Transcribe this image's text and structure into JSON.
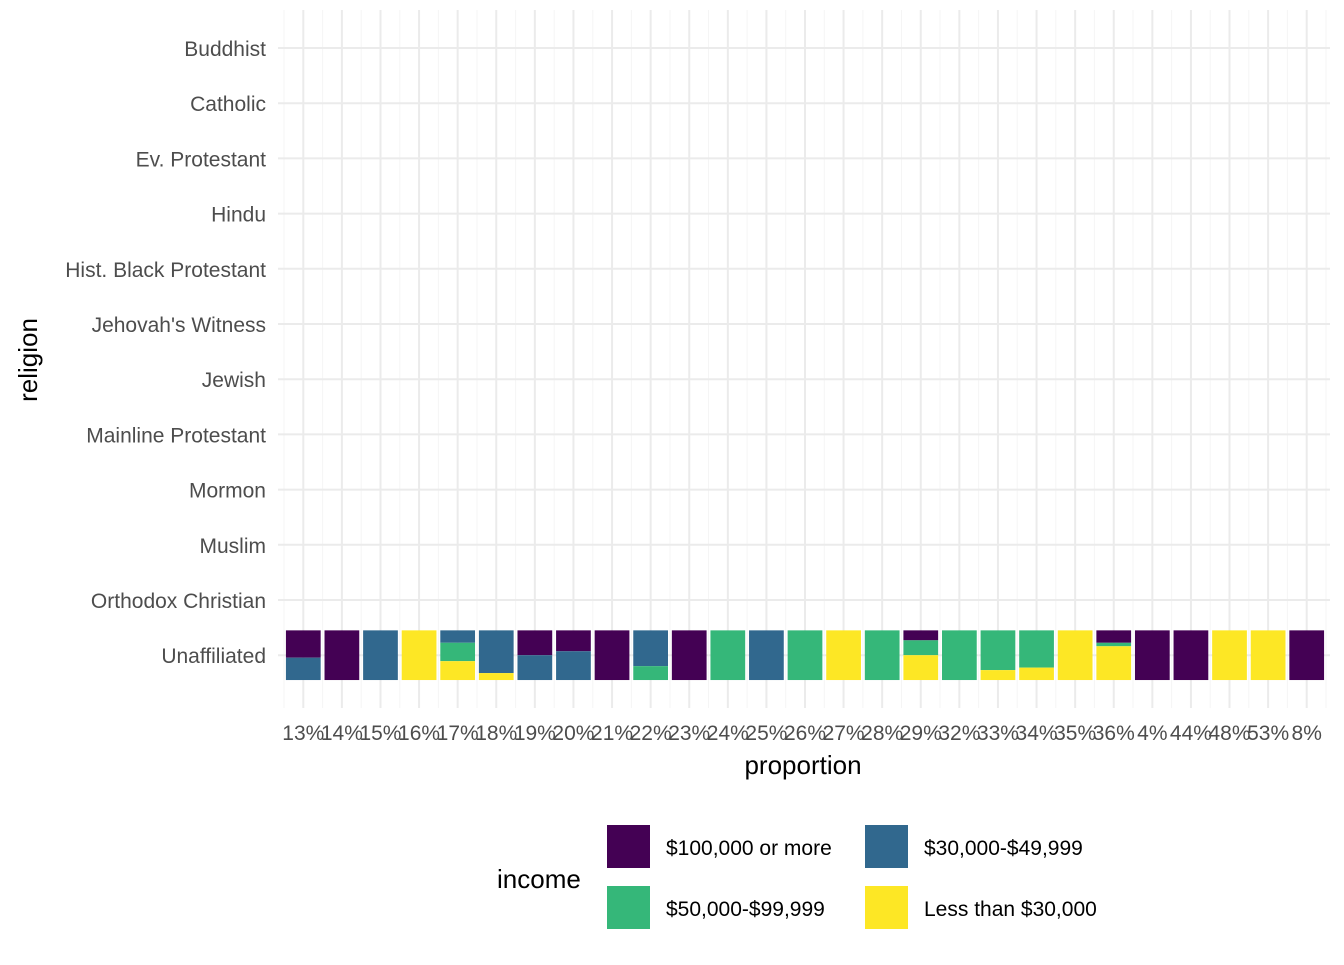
{
  "chart_data": {
    "type": "bar",
    "stacked": true,
    "xlabel": "proportion",
    "ylabel": "religion",
    "y_categories": [
      "Buddhist",
      "Catholic",
      "Ev. Protestant",
      "Hindu",
      "Hist. Black Protestant",
      "Jehovah's Witness",
      "Jewish",
      "Mainline Protestant",
      "Mormon",
      "Muslim",
      "Orthodox Christian",
      "Unaffiliated"
    ],
    "x_categories": [
      "13%",
      "14%",
      "15%",
      "16%",
      "17%",
      "18%",
      "19%",
      "20%",
      "21%",
      "22%",
      "23%",
      "24%",
      "25%",
      "26%",
      "27%",
      "28%",
      "29%",
      "32%",
      "33%",
      "34%",
      "35%",
      "36%",
      "4%",
      "44%",
      "48%",
      "53%",
      "8%"
    ],
    "bar_row": "Unaffiliated",
    "legend": {
      "title": "income",
      "position": "bottom",
      "entries": [
        "$100,000 or more",
        "$30,000-$49,999",
        "$50,000-$99,999",
        "Less than $30,000"
      ]
    },
    "colors": {
      "$100,000 or more": "#440154",
      "$30,000-$49,999": "#31688e",
      "$50,000-$99,999": "#35b779",
      "Less than $30,000": "#fde725"
    },
    "stack_order_top_to_bottom": [
      "$100,000 or more",
      "$30,000-$49,999",
      "$50,000-$99,999",
      "Less than $30,000"
    ],
    "bars": [
      {
        "x": "13%",
        "segments": {
          "$30,000-$49,999": 0.45,
          "$100,000 or more": 0.55
        }
      },
      {
        "x": "14%",
        "segments": {
          "$100,000 or more": 1
        }
      },
      {
        "x": "15%",
        "segments": {
          "$30,000-$49,999": 1
        }
      },
      {
        "x": "16%",
        "segments": {
          "Less than $30,000": 1
        }
      },
      {
        "x": "17%",
        "segments": {
          "$30,000-$49,999": 0.25,
          "$50,000-$99,999": 0.37,
          "Less than $30,000": 0.38
        }
      },
      {
        "x": "18%",
        "segments": {
          "$30,000-$49,999": 0.86,
          "Less than $30,000": 0.14
        }
      },
      {
        "x": "19%",
        "segments": {
          "$100,000 or more": 0.5,
          "$30,000-$49,999": 0.5
        }
      },
      {
        "x": "20%",
        "segments": {
          "$100,000 or more": 0.42,
          "$30,000-$49,999": 0.58
        }
      },
      {
        "x": "21%",
        "segments": {
          "$100,000 or more": 1
        }
      },
      {
        "x": "22%",
        "segments": {
          "$30,000-$49,999": 0.72,
          "$50,000-$99,999": 0.28
        }
      },
      {
        "x": "23%",
        "segments": {
          "$100,000 or more": 1
        }
      },
      {
        "x": "24%",
        "segments": {
          "$50,000-$99,999": 1
        }
      },
      {
        "x": "25%",
        "segments": {
          "$30,000-$49,999": 1
        }
      },
      {
        "x": "26%",
        "segments": {
          "$50,000-$99,999": 1
        }
      },
      {
        "x": "27%",
        "segments": {
          "Less than $30,000": 1
        }
      },
      {
        "x": "28%",
        "segments": {
          "$50,000-$99,999": 1
        }
      },
      {
        "x": "29%",
        "segments": {
          "$100,000 or more": 0.2,
          "$50,000-$99,999": 0.3,
          "Less than $30,000": 0.5
        }
      },
      {
        "x": "32%",
        "segments": {
          "$50,000-$99,999": 1
        }
      },
      {
        "x": "33%",
        "segments": {
          "$50,000-$99,999": 0.8,
          "Less than $30,000": 0.2
        }
      },
      {
        "x": "34%",
        "segments": {
          "$50,000-$99,999": 0.75,
          "Less than $30,000": 0.25
        }
      },
      {
        "x": "35%",
        "segments": {
          "Less than $30,000": 1
        }
      },
      {
        "x": "36%",
        "segments": {
          "$100,000 or more": 0.25,
          "$50,000-$99,999": 0.07,
          "Less than $30,000": 0.68
        }
      },
      {
        "x": "4%",
        "segments": {
          "$100,000 or more": 1
        }
      },
      {
        "x": "44%",
        "segments": {
          "$100,000 or more": 1
        }
      },
      {
        "x": "48%",
        "segments": {
          "Less than $30,000": 1
        }
      },
      {
        "x": "53%",
        "segments": {
          "Less than $30,000": 1
        }
      },
      {
        "x": "8%",
        "segments": {
          "$100,000 or more": 1
        }
      }
    ],
    "grid": true
  }
}
